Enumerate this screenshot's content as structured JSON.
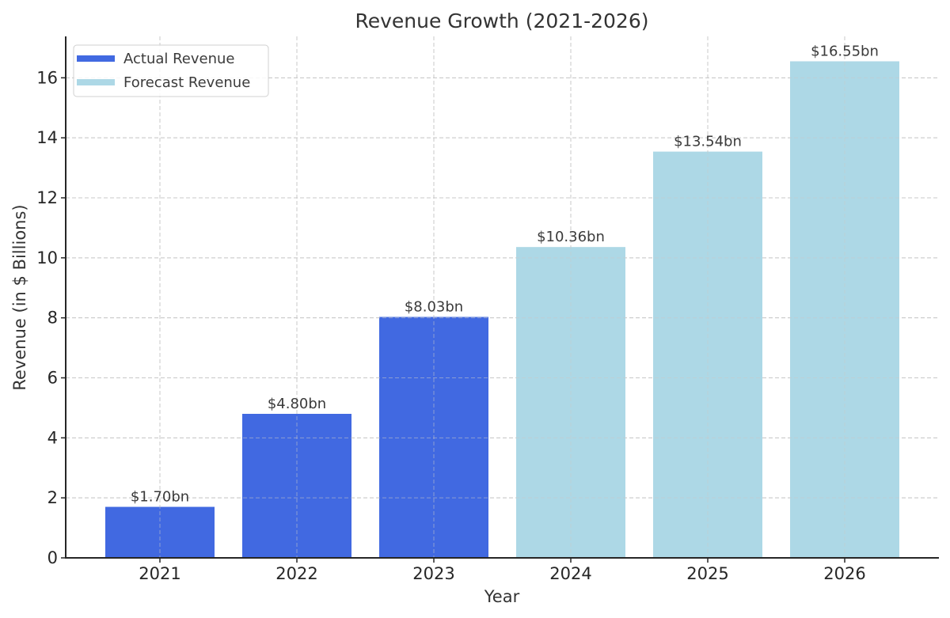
{
  "chart_data": {
    "type": "bar",
    "title": "Revenue Growth (2021-2026)",
    "xlabel": "Year",
    "ylabel": "Revenue (in $ Billions)",
    "categories": [
      "2021",
      "2022",
      "2023",
      "2024",
      "2025",
      "2026"
    ],
    "values": [
      1.7,
      4.8,
      8.03,
      10.36,
      13.54,
      16.55
    ],
    "data_labels": [
      "$1.70bn",
      "$4.80bn",
      "$8.03bn",
      "$10.36bn",
      "$13.54bn",
      "$16.55bn"
    ],
    "series_assignment": [
      "Actual Revenue",
      "Actual Revenue",
      "Actual Revenue",
      "Forecast Revenue",
      "Forecast Revenue",
      "Forecast Revenue"
    ],
    "series": [
      {
        "name": "Actual Revenue",
        "color": "#4169e1",
        "categories": [
          "2021",
          "2022",
          "2023"
        ],
        "values": [
          1.7,
          4.8,
          8.03
        ]
      },
      {
        "name": "Forecast Revenue",
        "color": "#add8e6",
        "categories": [
          "2024",
          "2025",
          "2026"
        ],
        "values": [
          10.36,
          13.54,
          16.55
        ]
      }
    ],
    "yticks": [
      0,
      2,
      4,
      6,
      8,
      10,
      12,
      14,
      16
    ],
    "ylim": [
      0,
      17.38
    ],
    "grid": true,
    "legend": {
      "placement": "top-left",
      "entries": [
        {
          "label": "Actual Revenue",
          "color": "#4169e1"
        },
        {
          "label": "Forecast Revenue",
          "color": "#add8e6"
        }
      ]
    }
  }
}
